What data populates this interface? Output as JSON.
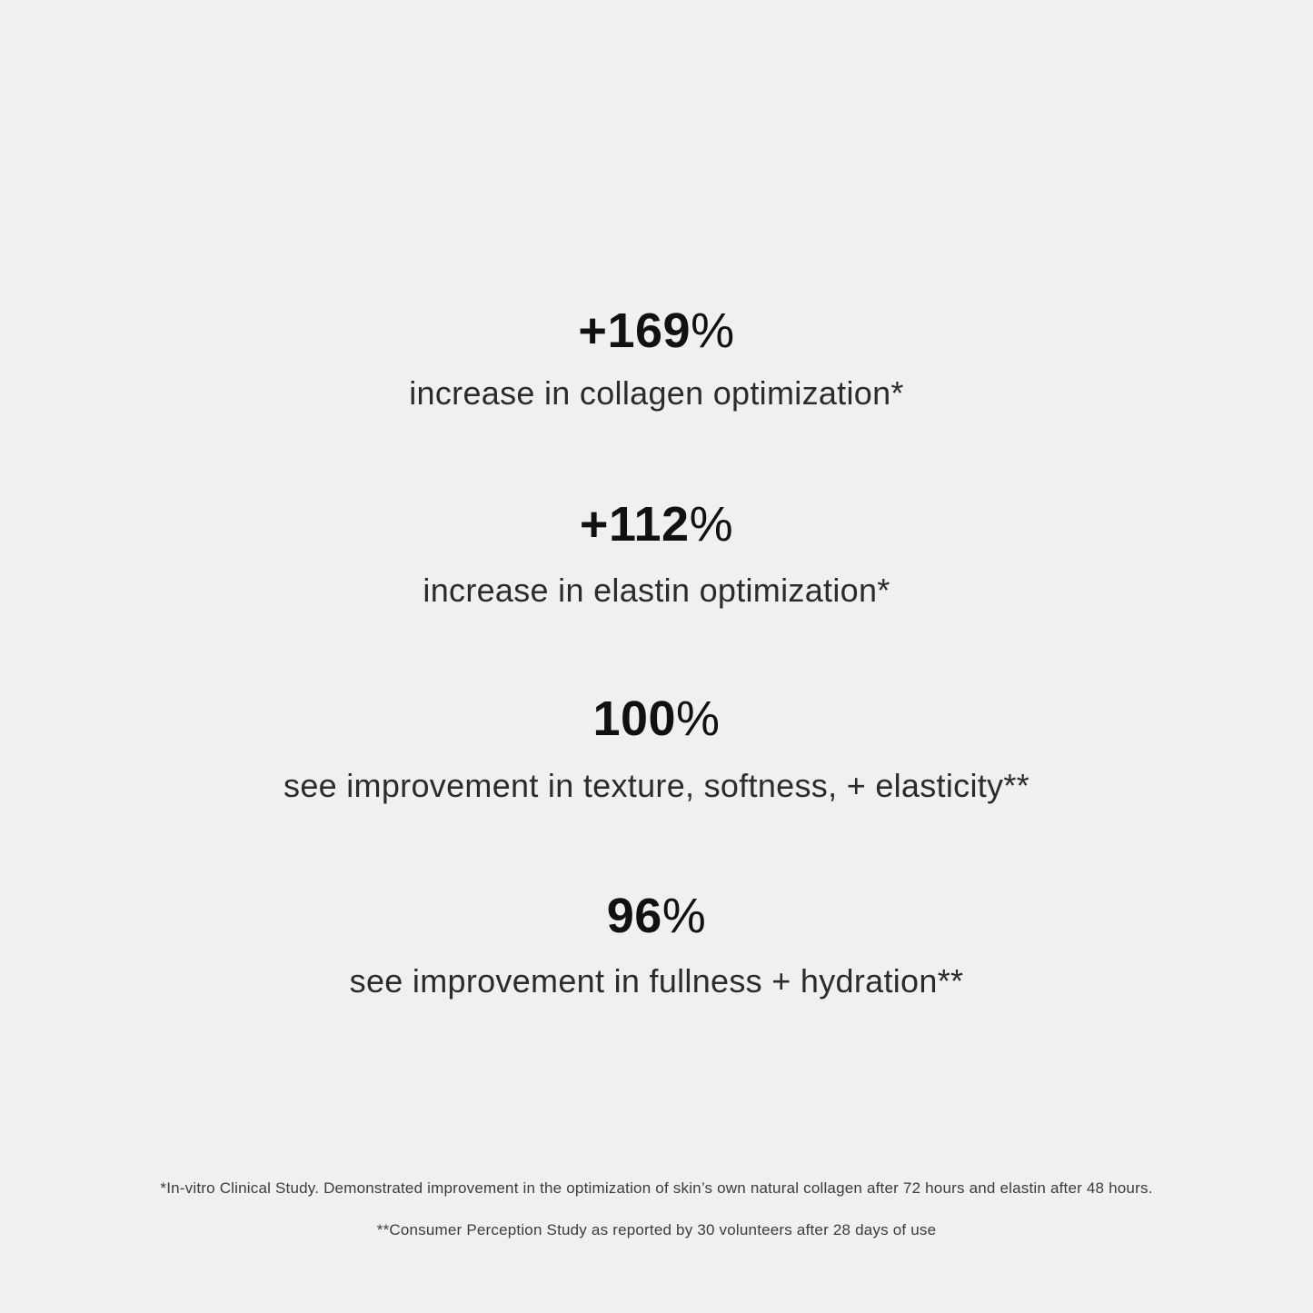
{
  "panel": {
    "background_color": "#f0f0f2",
    "number_color": "#111111",
    "description_color": "#2b2b2b",
    "footnote_color": "#3c3c3c"
  },
  "stats": [
    {
      "value": "+169",
      "unit": "%",
      "description": "increase in collagen optimization*"
    },
    {
      "value": "+112",
      "unit": "%",
      "description": "increase in elastin optimization*"
    },
    {
      "value": "100",
      "unit": "%",
      "description": "see improvement in texture, softness, + elasticity**"
    },
    {
      "value": "96",
      "unit": "%",
      "description": "see improvement in fullness + hydration**"
    }
  ],
  "footnotes": [
    "*In-vitro Clinical Study. Demonstrated improvement in the optimization of skin’s own natural collagen after 72 hours and elastin after 48 hours.",
    "**Consumer Perception Study as reported by 30 volunteers after 28 days of use"
  ]
}
